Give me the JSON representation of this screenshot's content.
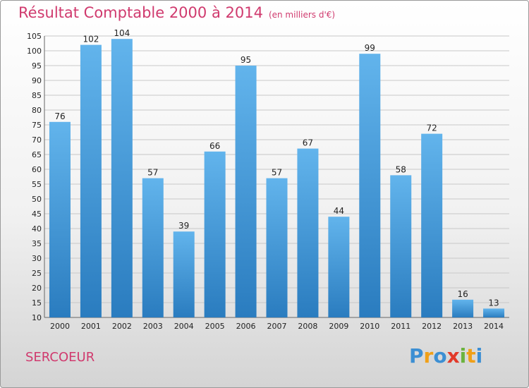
{
  "header": {
    "title": "Résultat Comptable 2000 à 2014",
    "subtitle": "(en milliers d'€)"
  },
  "footer": {
    "commune": "SERCOEUR",
    "logo_letters": [
      "P",
      "r",
      "o",
      "x",
      "i",
      "t",
      "i"
    ]
  },
  "colors": {
    "title": "#d03a6e",
    "bar_top": "#62b4ec",
    "bar_bottom": "#2a7cbf",
    "grid": "#c8c8c8",
    "axis_text": "#222222"
  },
  "chart_data": {
    "type": "bar",
    "title": "Résultat Comptable 2000 à 2014",
    "subtitle": "(en milliers d'€)",
    "xlabel": "",
    "ylabel": "",
    "categories": [
      "2000",
      "2001",
      "2002",
      "2003",
      "2004",
      "2005",
      "2006",
      "2007",
      "2008",
      "2009",
      "2010",
      "2011",
      "2012",
      "2013",
      "2014"
    ],
    "values": [
      76,
      102,
      104,
      57,
      39,
      66,
      95,
      57,
      67,
      44,
      99,
      58,
      72,
      16,
      13
    ],
    "ylim": [
      10,
      105
    ],
    "yticks": [
      10,
      15,
      20,
      25,
      30,
      35,
      40,
      45,
      50,
      55,
      60,
      65,
      70,
      75,
      80,
      85,
      90,
      95,
      100,
      105
    ],
    "grid": true,
    "data_labels": true
  }
}
